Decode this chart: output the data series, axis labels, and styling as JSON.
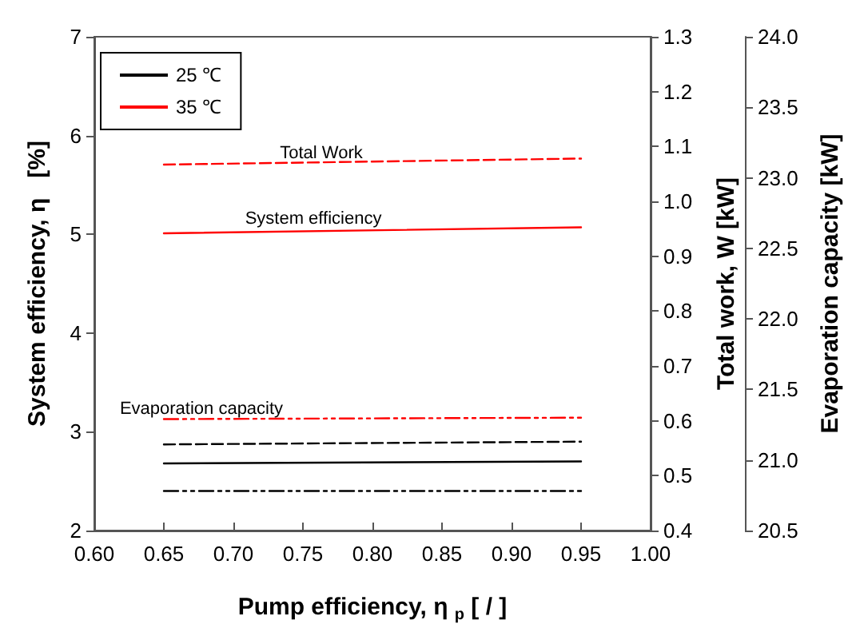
{
  "chart_data": {
    "type": "line",
    "x": [
      0.65,
      0.95
    ],
    "series": [
      {
        "name": "25 ℃",
        "color": "#000000",
        "values": [
          2.68,
          2.7
        ],
        "line_style": "solid"
      },
      {
        "color": "#000000",
        "values": [
          0.557,
          0.562
        ],
        "axis": "y2",
        "line_style": "dashed"
      },
      {
        "color": "#000000",
        "values": [
          20.78,
          20.78
        ],
        "axis": "y3",
        "line_style": "dotted"
      },
      {
        "name": "35 ℃",
        "color": "#ff0000",
        "values": [
          5.01,
          5.07
        ],
        "line_style": "solid"
      },
      {
        "color": "#ff0000",
        "values": [
          1.067,
          1.078
        ],
        "axis": "y2",
        "line_style": "dashed"
      },
      {
        "color": "#ff0000",
        "values": [
          21.29,
          21.3
        ],
        "axis": "y3",
        "line_style": "dotted"
      }
    ],
    "xlabel": "Pump efficiency, η $_{p}$ [ / ]",
    "ylabel": "System efficiency, η   [%]",
    "y2label": "Total work, W [kW]",
    "y3label": "Evaporation capacity [kW]",
    "xlim": [
      0.6,
      1.0
    ],
    "xticks": [
      {
        "value": 0.6,
        "label": "0.60"
      },
      {
        "value": 0.65,
        "label": "0.65"
      },
      {
        "value": 0.7,
        "label": "0.70"
      },
      {
        "value": 0.75,
        "label": "0.75"
      },
      {
        "value": 0.8,
        "label": "0.80"
      },
      {
        "value": 0.85,
        "label": "0.85"
      },
      {
        "value": 0.9,
        "label": "0.90"
      },
      {
        "value": 0.95,
        "label": "0.95"
      },
      {
        "value": 1.0,
        "label": "1.00"
      }
    ],
    "ylim": [
      2,
      7
    ],
    "yticks": [
      2,
      3,
      4,
      5,
      6,
      7
    ],
    "y2lim": [
      0.4,
      1.3
    ],
    "y2ticks": [
      0.4,
      0.5,
      0.6,
      0.7,
      0.8,
      0.9,
      {
        "value": 1.0,
        "label": "1.0"
      },
      1.1,
      1.2,
      1.3
    ],
    "y3lim": [
      20.5,
      24.0
    ],
    "y3ticks": [
      20.5,
      {
        "value": 21,
        "label": "21.0"
      },
      21.5,
      {
        "value": 22,
        "label": "22.0"
      },
      22.5,
      {
        "value": 23,
        "label": "23.0"
      },
      23.5,
      {
        "value": 24,
        "label": "24.0"
      }
    ],
    "annotations": [
      "Total Work",
      "System efficiency",
      "Evaporation capacity"
    ],
    "legend": "top left",
    "marker": "none"
  }
}
